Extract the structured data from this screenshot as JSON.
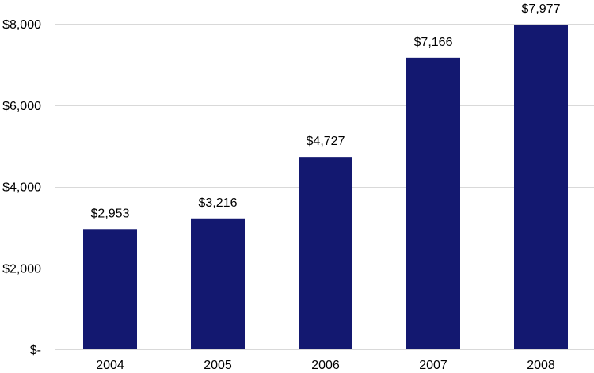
{
  "chart_data": {
    "type": "bar",
    "title": "",
    "xlabel": "",
    "ylabel": "",
    "categories": [
      "2004",
      "2005",
      "2006",
      "2007",
      "2008"
    ],
    "values": [
      2953,
      3216,
      4727,
      7166,
      7977
    ],
    "data_labels": [
      "$2,953",
      "$3,216",
      "$4,727",
      "$7,166",
      "$7,977"
    ],
    "ylim": [
      0,
      8000
    ],
    "y_ticks": [
      0,
      2000,
      4000,
      6000,
      8000
    ],
    "y_tick_labels": [
      "$-",
      "$2,000",
      "$4,000",
      "$6,000",
      "$8,000"
    ],
    "grid": true,
    "legend": "none",
    "bar_color": "#131870",
    "grid_color": "#d9d9d9"
  }
}
